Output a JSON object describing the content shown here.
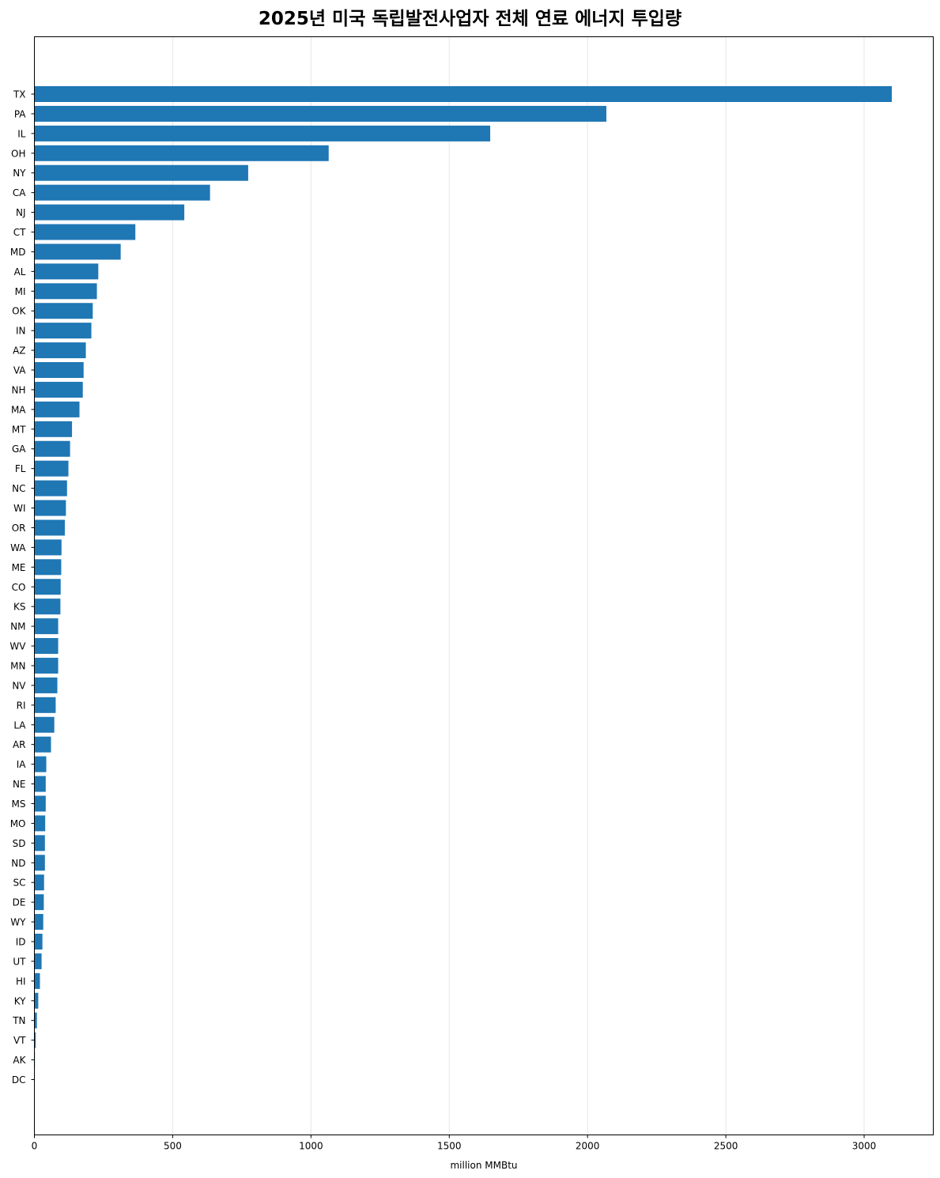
{
  "chart_data": {
    "type": "bar",
    "orientation": "horizontal",
    "title": "2025년 미국 독립발전사업자 전체 연료 에너지 투입량",
    "xlabel": "million MMBtu",
    "ylabel": "",
    "xlim": [
      0,
      3250
    ],
    "xticks": [
      0,
      500,
      1000,
      1500,
      2000,
      2500,
      3000
    ],
    "grid": "x",
    "bar_color": "#1f77b4",
    "categories": [
      "TX",
      "PA",
      "IL",
      "OH",
      "NY",
      "CA",
      "NJ",
      "CT",
      "MD",
      "AL",
      "MI",
      "OK",
      "IN",
      "AZ",
      "VA",
      "NH",
      "MA",
      "MT",
      "GA",
      "FL",
      "NC",
      "WI",
      "OR",
      "WA",
      "ME",
      "CO",
      "KS",
      "NM",
      "WV",
      "MN",
      "NV",
      "RI",
      "LA",
      "AR",
      "IA",
      "NE",
      "MS",
      "MO",
      "SD",
      "ND",
      "SC",
      "DE",
      "WY",
      "ID",
      "UT",
      "HI",
      "KY",
      "TN",
      "VT",
      "AK",
      "DC"
    ],
    "values": [
      3100,
      2068,
      1648,
      1064,
      773,
      635,
      542,
      365,
      312,
      231,
      226,
      211,
      206,
      186,
      178,
      175,
      163,
      136,
      129,
      123,
      118,
      114,
      110,
      98,
      97,
      95,
      94,
      86,
      86,
      86,
      83,
      77,
      72,
      60,
      43,
      41,
      41,
      39,
      38,
      38,
      35,
      34,
      32,
      29,
      26,
      20,
      14,
      9,
      5,
      2,
      1
    ]
  }
}
